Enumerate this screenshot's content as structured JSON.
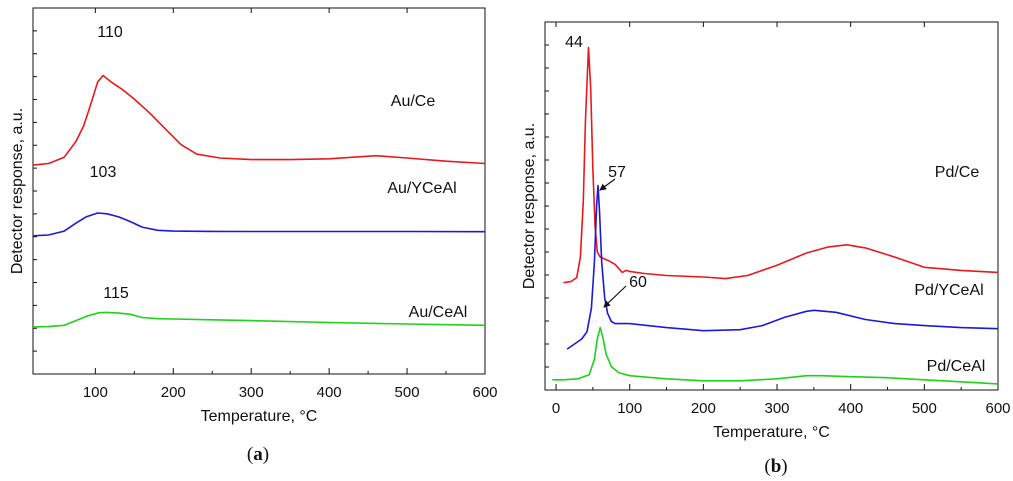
{
  "chart_data": [
    {
      "type": "line",
      "panel": "(a)",
      "panel_letter": "a",
      "xlabel": "Temperature, °C",
      "ylabel": "Detector response, a.u.",
      "xlim": [
        20,
        600
      ],
      "xticks": [
        100,
        200,
        300,
        400,
        500,
        600
      ],
      "y_tick_labels_shown": false,
      "grid": false,
      "legend": "none; series labeled inline",
      "series": [
        {
          "name": "Au/Ce",
          "color": "#e8191c",
          "peak_label": "110",
          "x": [
            20,
            40,
            60,
            75,
            85,
            95,
            103,
            110,
            120,
            135,
            150,
            170,
            190,
            210,
            230,
            260,
            300,
            350,
            400,
            460,
            500,
            550,
            600
          ],
          "y": [
            0.55,
            0.56,
            0.6,
            0.7,
            0.8,
            0.95,
            1.08,
            1.12,
            1.08,
            1.03,
            0.97,
            0.88,
            0.78,
            0.68,
            0.62,
            0.595,
            0.585,
            0.585,
            0.59,
            0.61,
            0.595,
            0.575,
            0.56
          ]
        },
        {
          "name": "Au/YCeAl",
          "color": "#1a1adb",
          "peak_label": "103",
          "x": [
            20,
            40,
            60,
            75,
            88,
            103,
            115,
            130,
            145,
            160,
            180,
            200,
            250,
            300,
            400,
            500,
            600
          ],
          "y": [
            0.1,
            0.105,
            0.13,
            0.18,
            0.22,
            0.245,
            0.24,
            0.22,
            0.19,
            0.155,
            0.135,
            0.13,
            0.128,
            0.127,
            0.127,
            0.127,
            0.126
          ]
        },
        {
          "name": "Au/CeAl",
          "color": "#1ed21a",
          "peak_label": "115",
          "x": [
            20,
            40,
            60,
            75,
            90,
            105,
            115,
            130,
            145,
            160,
            180,
            200,
            250,
            300,
            400,
            500,
            600
          ],
          "y": [
            -0.48,
            -0.478,
            -0.47,
            -0.44,
            -0.41,
            -0.39,
            -0.388,
            -0.392,
            -0.4,
            -0.42,
            -0.428,
            -0.43,
            -0.435,
            -0.44,
            -0.452,
            -0.462,
            -0.47
          ]
        }
      ]
    },
    {
      "type": "line",
      "panel": "(b)",
      "panel_letter": "b",
      "xlabel": "Temperature, °C",
      "ylabel": "Detector response, a.u.",
      "xlim": [
        -15,
        600
      ],
      "xticks": [
        0,
        100,
        200,
        300,
        400,
        500,
        600
      ],
      "y_tick_labels_shown": false,
      "grid": false,
      "legend": "none; series labeled inline",
      "series": [
        {
          "name": "Pd/Ce",
          "color": "#e8191c",
          "peak_label": "44",
          "x": [
            10,
            20,
            28,
            33,
            37,
            40,
            44,
            47,
            50,
            53,
            56,
            60,
            70,
            80,
            90,
            95,
            100,
            120,
            150,
            200,
            230,
            260,
            300,
            340,
            370,
            395,
            420,
            460,
            500,
            550,
            600
          ],
          "y": [
            1.0,
            1.01,
            1.05,
            1.25,
            1.8,
            2.6,
            3.3,
            2.9,
            2.1,
            1.55,
            1.3,
            1.25,
            1.22,
            1.18,
            1.1,
            1.12,
            1.11,
            1.09,
            1.07,
            1.055,
            1.04,
            1.07,
            1.17,
            1.29,
            1.35,
            1.37,
            1.34,
            1.25,
            1.15,
            1.12,
            1.1
          ]
        },
        {
          "name": "Pd/YCeAl",
          "color": "#1a1adb",
          "peak_label": "57",
          "x": [
            15,
            25,
            35,
            42,
            48,
            52,
            55,
            57,
            59,
            62,
            66,
            70,
            75,
            80,
            90,
            100,
            150,
            200,
            250,
            280,
            310,
            340,
            350,
            380,
            420,
            460,
            500,
            550,
            600
          ],
          "y": [
            0.35,
            0.4,
            0.45,
            0.52,
            0.75,
            1.2,
            1.75,
            1.95,
            1.7,
            1.2,
            0.85,
            0.7,
            0.62,
            0.6,
            0.6,
            0.6,
            0.56,
            0.53,
            0.54,
            0.58,
            0.66,
            0.72,
            0.73,
            0.71,
            0.64,
            0.6,
            0.58,
            0.56,
            0.55
          ]
        },
        {
          "name": "Pd/CeAl",
          "color": "#1ed21a",
          "peak_label": "60",
          "x": [
            -5,
            10,
            30,
            45,
            52,
            56,
            60,
            64,
            68,
            75,
            85,
            100,
            150,
            200,
            250,
            300,
            340,
            360,
            400,
            450,
            500,
            550,
            600
          ],
          "y": [
            0.05,
            0.05,
            0.06,
            0.1,
            0.25,
            0.45,
            0.56,
            0.45,
            0.3,
            0.18,
            0.12,
            0.09,
            0.06,
            0.04,
            0.04,
            0.06,
            0.09,
            0.09,
            0.08,
            0.07,
            0.05,
            0.03,
            0.01
          ]
        }
      ]
    }
  ]
}
